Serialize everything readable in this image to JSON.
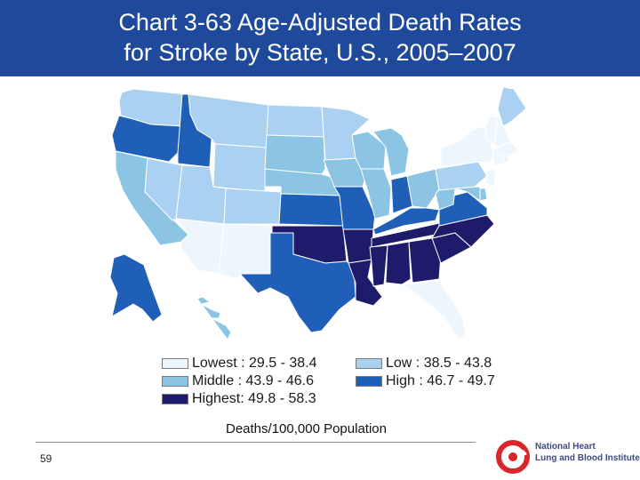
{
  "title_line1": "Chart 3-63 Age-Adjusted Death Rates",
  "title_line2": "for Stroke by State, U.S., 2005–2007",
  "legend": [
    {
      "category": "Lowest",
      "label": "Lowest : 29.5 - 38.4",
      "color": "#eef6fd"
    },
    {
      "category": "Low",
      "label": "Low   : 38.5 - 43.8",
      "color": "#aad0f2"
    },
    {
      "category": "Middle",
      "label": "Middle  : 43.9 - 46.6",
      "color": "#8cc4e4"
    },
    {
      "category": "High",
      "label": "High  : 46.7 - 49.7",
      "color": "#1f5fb8"
    },
    {
      "category": "Highest",
      "label": "Highest: 49.8 - 58.3",
      "color": "#1e1c6a"
    }
  ],
  "unit_label": "Deaths/100,000 Population",
  "page_number": "59",
  "logo": {
    "line1": "National Heart",
    "line2": "Lung and Blood Institute",
    "icon": "nhlbi-logo-icon"
  },
  "state_categories": {
    "Washington": "Low",
    "Oregon": "High",
    "California": "Middle",
    "Nevada": "Low",
    "Idaho": "High",
    "Montana": "Low",
    "Wyoming": "Low",
    "Utah": "Low",
    "Arizona": "Lowest",
    "Colorado": "Low",
    "New Mexico": "Lowest",
    "North Dakota": "Low",
    "South Dakota": "Middle",
    "Nebraska": "Middle",
    "Kansas": "High",
    "Oklahoma": "Highest",
    "Texas": "High",
    "Minnesota": "Low",
    "Iowa": "Middle",
    "Missouri": "High",
    "Arkansas": "Highest",
    "Louisiana": "Highest",
    "Wisconsin": "Middle",
    "Illinois": "Middle",
    "Michigan": "Middle",
    "Indiana": "High",
    "Ohio": "Middle",
    "Kentucky": "High",
    "Tennessee": "Highest",
    "Mississippi": "Highest",
    "Alabama": "Highest",
    "Georgia": "Highest",
    "Florida": "Lowest",
    "South Carolina": "Highest",
    "North Carolina": "Highest",
    "Virginia": "High",
    "West Virginia": "Middle",
    "Pennsylvania": "Low",
    "New York": "Lowest",
    "Maine": "Low",
    "New Hampshire": "Lowest",
    "Vermont": "Lowest",
    "Massachusetts": "Lowest",
    "Connecticut": "Lowest",
    "Rhode Island": "Lowest",
    "New Jersey": "Lowest",
    "Delaware": "Middle",
    "Maryland": "Middle",
    "Alaska": "High",
    "Hawaii": "Middle"
  }
}
